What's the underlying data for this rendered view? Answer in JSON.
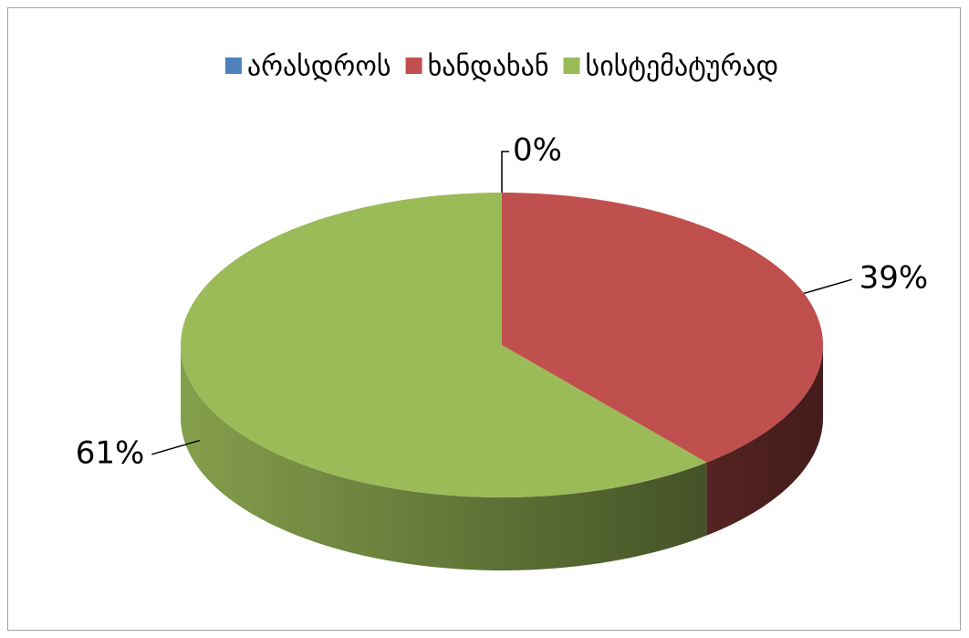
{
  "chart_data": {
    "type": "pie",
    "categories": [
      "არასდროს",
      "ხანდახან",
      "სისტემატურად"
    ],
    "values": [
      0,
      39,
      61
    ],
    "value_labels": [
      "0%",
      "39%",
      "61%"
    ],
    "colors": [
      "#4f81bd",
      "#c0504d",
      "#9bbb59"
    ],
    "legend": "top",
    "three_d": true
  }
}
